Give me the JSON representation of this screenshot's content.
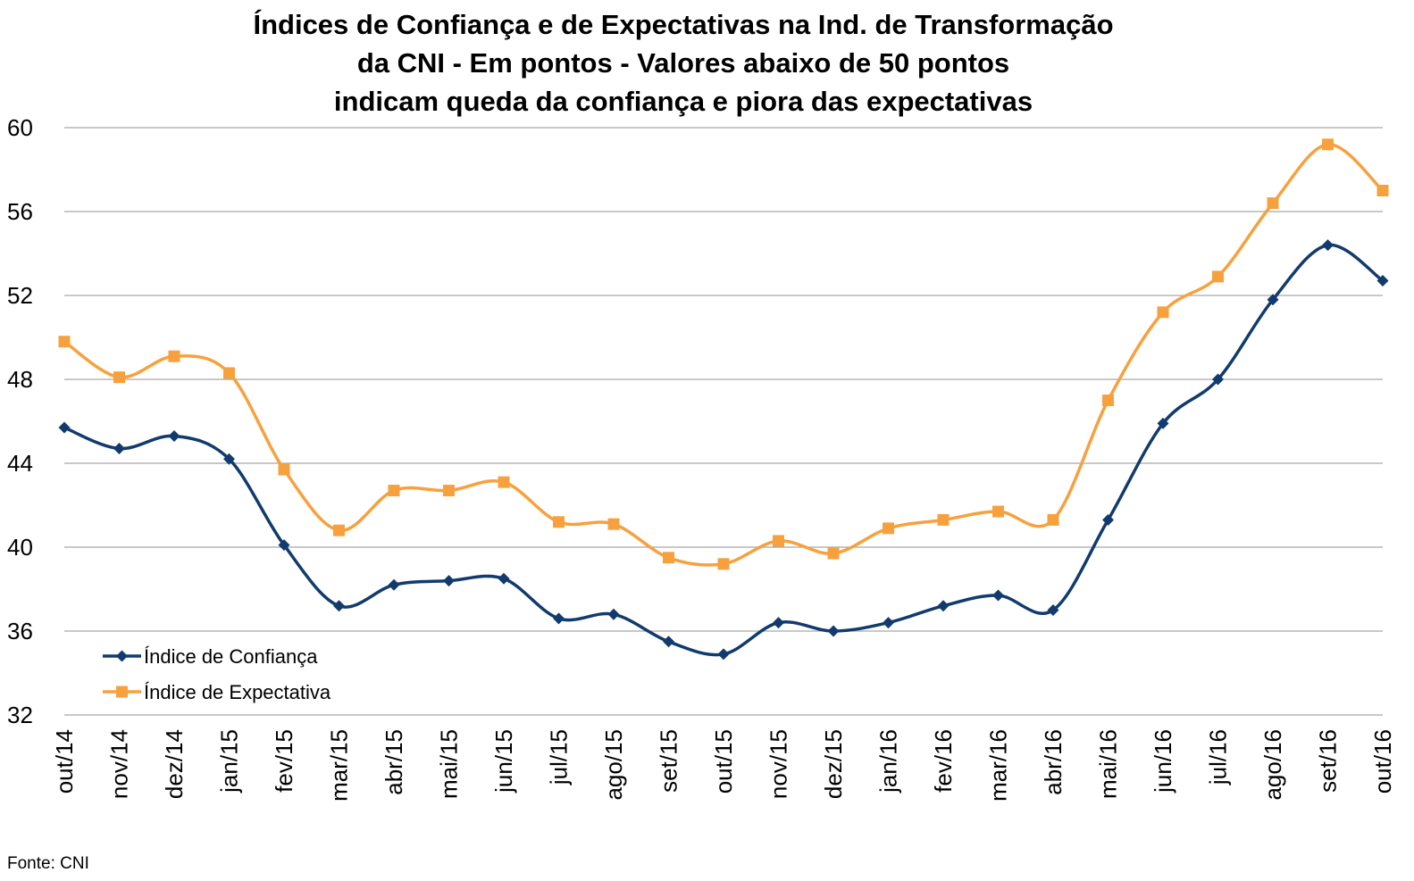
{
  "chart_data": {
    "type": "line",
    "title_lines": [
      "Índices de Confiança e de Expectativas na Ind. de Transformação",
      "da CNI - Em pontos - Valores abaixo de 50 pontos",
      "indicam queda da confiança e piora das expectativas"
    ],
    "xlabel": "",
    "ylabel": "",
    "ylim": [
      32,
      60
    ],
    "yticks": [
      32,
      36,
      40,
      44,
      48,
      52,
      56,
      60
    ],
    "grid": true,
    "smooth": true,
    "legend_position": "bottom-left",
    "categories": [
      "out/14",
      "nov/14",
      "dez/14",
      "jan/15",
      "fev/15",
      "mar/15",
      "abr/15",
      "mai/15",
      "jun/15",
      "jul/15",
      "ago/15",
      "set/15",
      "out/15",
      "nov/15",
      "dez/15",
      "jan/16",
      "fev/16",
      "mar/16",
      "abr/16",
      "mai/16",
      "jun/16",
      "jul/16",
      "ago/16",
      "set/16",
      "out/16"
    ],
    "series": [
      {
        "name": "Índice de Confiança",
        "color": "#123B6D",
        "marker": "diamond",
        "values": [
          45.7,
          44.7,
          45.3,
          44.2,
          40.1,
          37.2,
          38.2,
          38.4,
          38.5,
          36.6,
          36.8,
          35.5,
          34.9,
          36.4,
          36.0,
          36.4,
          37.2,
          37.7,
          37.0,
          41.3,
          45.9,
          48.0,
          51.8,
          54.4,
          52.7
        ]
      },
      {
        "name": "Índice de Expectativa",
        "color": "#F7A13E",
        "marker": "square",
        "values": [
          49.8,
          48.1,
          49.1,
          48.3,
          43.7,
          40.8,
          42.7,
          42.7,
          43.1,
          41.2,
          41.1,
          39.5,
          39.2,
          40.3,
          39.7,
          40.9,
          41.3,
          41.7,
          41.3,
          47.0,
          51.2,
          52.9,
          56.4,
          59.2,
          57.0
        ]
      }
    ]
  },
  "source": "Fonte: CNI"
}
